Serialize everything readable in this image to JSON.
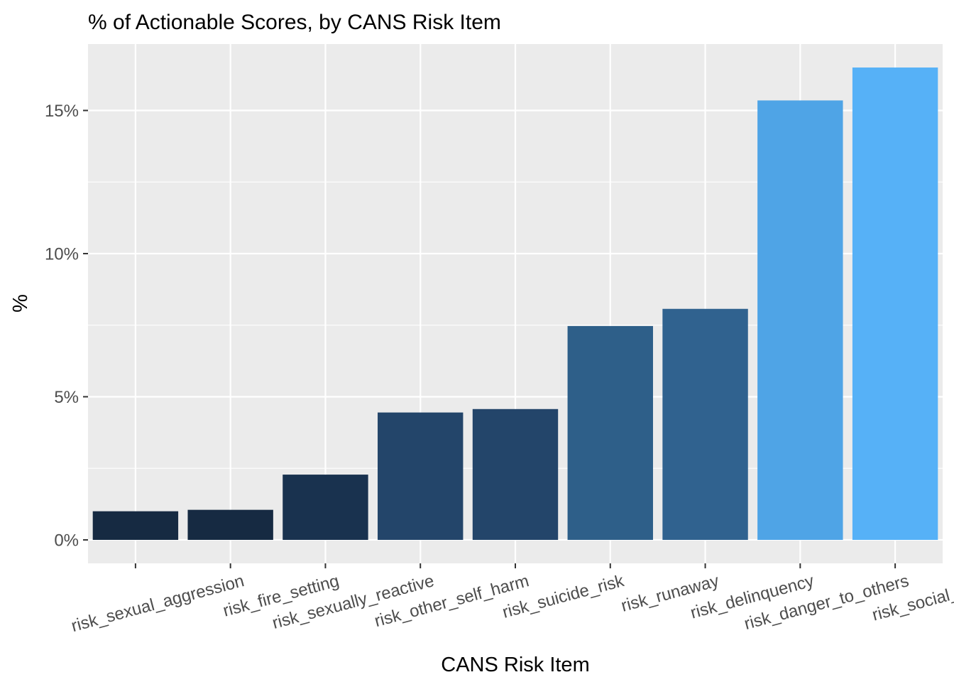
{
  "chart_data": {
    "type": "bar",
    "title": "% of Actionable Scores, by CANS Risk Item",
    "xlabel": "CANS Risk Item",
    "ylabel": "%",
    "categories": [
      "risk_sexual_aggression",
      "risk_fire_setting",
      "risk_sexually_reactive",
      "risk_other_self_harm",
      "risk_suicide_risk",
      "risk_runaway",
      "risk_delinquency",
      "risk_danger_to_others",
      "risk_social_behav"
    ],
    "values": [
      1.0,
      1.05,
      2.28,
      4.45,
      4.57,
      7.47,
      8.07,
      15.35,
      16.5
    ],
    "bar_colors": [
      "#162a42",
      "#162a42",
      "#19324f",
      "#23456a",
      "#23456a",
      "#2e5f89",
      "#30628f",
      "#4fa4e6",
      "#56b1f7"
    ],
    "ylim": [
      -0.82,
      17.32
    ],
    "y_ticks": [
      0,
      5,
      10,
      15
    ],
    "y_tick_labels": [
      "0%",
      "5%",
      "10%",
      "15%"
    ],
    "grid": true,
    "panel_background": "#ebebeb",
    "grid_color": "#ffffff"
  }
}
